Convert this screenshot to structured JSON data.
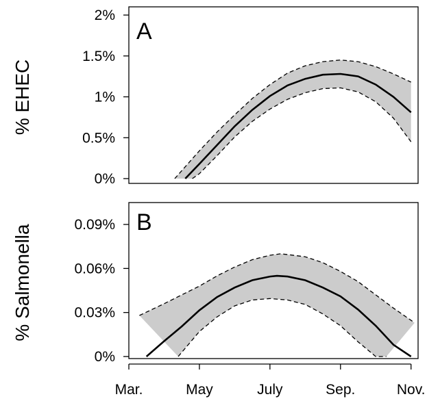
{
  "colors": {
    "band": "#cccccc",
    "line": "#000000",
    "background": "#ffffff"
  },
  "chart_data": [
    {
      "type": "line",
      "panel_label": "A",
      "ylabel": "% EHEC",
      "xlabel": "",
      "x_ticks": [
        "Mar.",
        "May",
        "July",
        "Sep.",
        "Nov."
      ],
      "x_tick_values": [
        3,
        5,
        7,
        9,
        11
      ],
      "xlim": [
        3,
        11.2
      ],
      "ylim": [
        0,
        2
      ],
      "y_ticks": [
        0,
        0.5,
        1,
        1.5,
        2
      ],
      "y_tick_labels": [
        "0%",
        "0.5%",
        "1%",
        "1.5%",
        "2%"
      ],
      "grid": false,
      "series": [
        {
          "role": "estimate",
          "x": [
            4.6,
            5.0,
            5.5,
            6.0,
            6.5,
            7.0,
            7.5,
            8.0,
            8.5,
            9.0,
            9.5,
            10.0,
            10.5,
            11.0
          ],
          "y": [
            0.0,
            0.18,
            0.41,
            0.64,
            0.84,
            1.01,
            1.14,
            1.22,
            1.27,
            1.28,
            1.25,
            1.15,
            1.0,
            0.81
          ]
        },
        {
          "role": "upper",
          "x": [
            4.3,
            5.0,
            5.5,
            6.0,
            6.5,
            7.0,
            7.5,
            8.0,
            8.5,
            9.0,
            9.5,
            10.0,
            10.5,
            11.0
          ],
          "y": [
            0.0,
            0.34,
            0.57,
            0.78,
            0.98,
            1.15,
            1.29,
            1.38,
            1.43,
            1.45,
            1.43,
            1.37,
            1.28,
            1.18
          ]
        },
        {
          "role": "lower",
          "x": [
            4.8,
            5.0,
            5.5,
            6.0,
            6.5,
            7.0,
            7.5,
            8.0,
            8.5,
            9.0,
            9.5,
            10.0,
            10.5,
            11.0
          ],
          "y": [
            0.0,
            0.06,
            0.28,
            0.51,
            0.7,
            0.85,
            0.97,
            1.05,
            1.1,
            1.11,
            1.06,
            0.94,
            0.74,
            0.45
          ]
        }
      ]
    },
    {
      "type": "line",
      "panel_label": "B",
      "ylabel": "% Salmonella",
      "xlabel": "",
      "x_ticks": [
        "Mar.",
        "May",
        "July",
        "Sep.",
        "Nov."
      ],
      "x_tick_values": [
        3,
        5,
        7,
        9,
        11
      ],
      "xlim": [
        3,
        11.2
      ],
      "ylim": [
        0,
        0.097
      ],
      "y_ticks": [
        0,
        0.03,
        0.06,
        0.09
      ],
      "y_tick_labels": [
        "0%",
        "0.03%",
        "0.06%",
        "0.09%"
      ],
      "grid": false,
      "series": [
        {
          "role": "estimate",
          "x": [
            3.5,
            4.0,
            4.5,
            5.0,
            5.5,
            6.0,
            6.5,
            7.0,
            7.2,
            7.5,
            8.0,
            8.5,
            9.0,
            9.5,
            10.0,
            10.5,
            11.0
          ],
          "y": [
            0.0,
            0.0105,
            0.0205,
            0.0315,
            0.0405,
            0.047,
            0.052,
            0.0545,
            0.055,
            0.0545,
            0.052,
            0.047,
            0.041,
            0.032,
            0.021,
            0.008,
            0.0
          ]
        },
        {
          "role": "upper",
          "x": [
            3.3,
            4.0,
            4.5,
            5.0,
            5.5,
            6.0,
            6.5,
            7.0,
            7.3,
            7.5,
            8.0,
            8.5,
            9.0,
            9.5,
            10.0,
            10.5,
            11.1
          ],
          "y": [
            0.028,
            0.036,
            0.042,
            0.048,
            0.055,
            0.061,
            0.066,
            0.069,
            0.07,
            0.0695,
            0.068,
            0.064,
            0.058,
            0.051,
            0.042,
            0.033,
            0.023
          ]
        },
        {
          "role": "lower",
          "x": [
            4.4,
            5.0,
            5.5,
            6.0,
            6.5,
            7.0,
            7.5,
            8.0,
            8.5,
            9.0,
            9.5,
            10.0,
            10.3
          ],
          "y": [
            0.0,
            0.017,
            0.027,
            0.0345,
            0.0385,
            0.0395,
            0.0385,
            0.0355,
            0.029,
            0.021,
            0.01,
            0.0,
            0.0
          ]
        }
      ]
    }
  ]
}
